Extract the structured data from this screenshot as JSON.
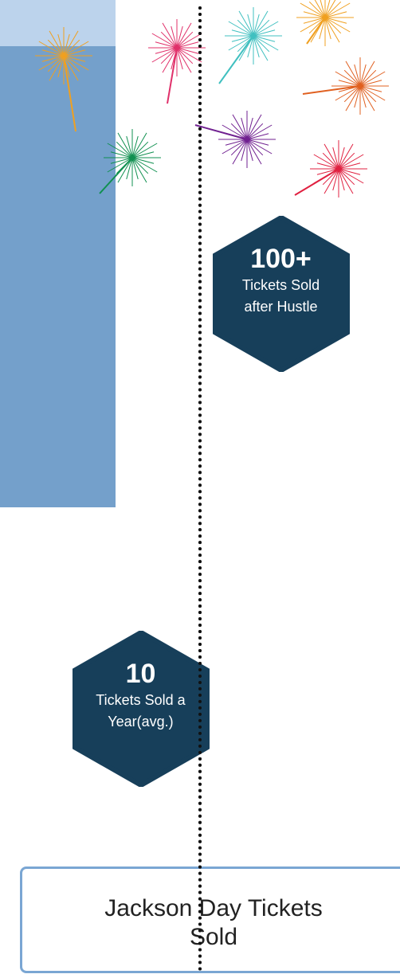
{
  "chart_data": {
    "type": "bar",
    "title": "Jackson Day Tickets Sold",
    "categories": [
      "Tickets Sold a Year(avg.)",
      "Tickets Sold after Hustle"
    ],
    "values": [
      10,
      100
    ],
    "value_labels": [
      "10",
      "100+"
    ],
    "colors": [
      "#bcd3ec",
      "#74a0cb"
    ],
    "label_color": "#173f5a"
  }
}
